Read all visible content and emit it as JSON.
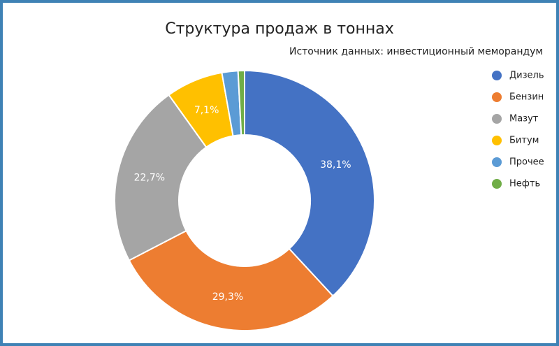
{
  "chart_data": {
    "type": "donut",
    "title": "Структура продаж в тоннах",
    "subtitle": "Источник данных: инвестиционный меморандум",
    "categories": [
      "Дизель",
      "Бензин",
      "Мазут",
      "Битум",
      "Прочее",
      "Нефть"
    ],
    "values": [
      38.1,
      29.3,
      22.7,
      7.1,
      2.0,
      0.8
    ],
    "value_labels": [
      "38,1%",
      "29,3%",
      "22,7%",
      "7,1%",
      null,
      null
    ],
    "colors": [
      "#4472c4",
      "#ed7d31",
      "#a5a5a5",
      "#ffc000",
      "#5b9bd5",
      "#70ad47"
    ],
    "legend": "right"
  }
}
